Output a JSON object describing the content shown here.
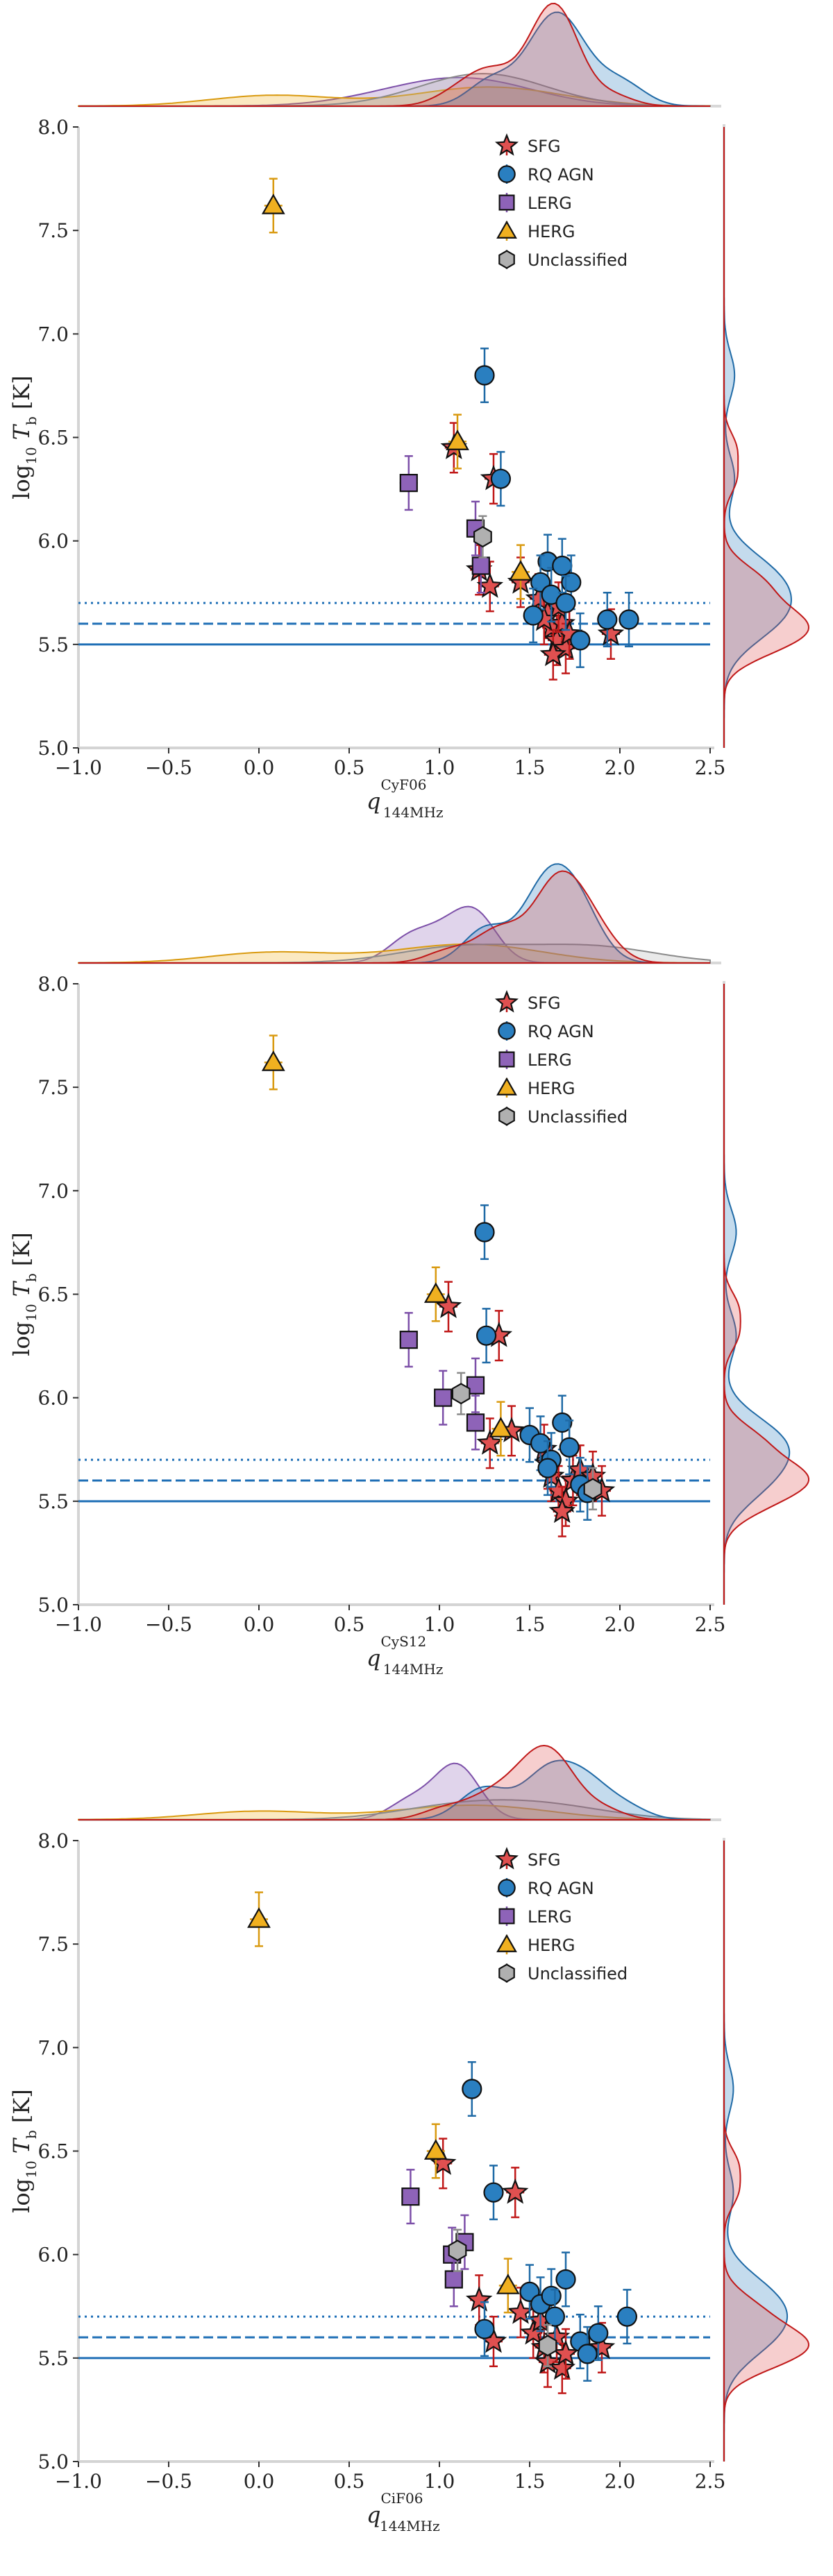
{
  "colors": {
    "SFG": "#e05050",
    "SFG_edge": "#c01818",
    "RQ AGN": "#2a7fc0",
    "RQ AGN_edge": "#1f6aa6",
    "LERG": "#8e63b8",
    "LERG_edge": "#7c4fa8",
    "HERG": "#f0b020",
    "HERG_edge": "#d99a10",
    "Unclassified": "#b0b0b0",
    "Unclassified_edge": "#8a8a8a",
    "threshold": "#1f6fb6"
  },
  "chart_data": [
    {
      "type": "scatter",
      "xlabel": "q",
      "xlabel_sup": "CyF06",
      "xlabel_sub": "144MHz",
      "ylabel": "log",
      "ylabel_sub": "10",
      "ylabel_rest": "T",
      "ylabel_rest_sub": "b",
      "ylabel_unit": "[K]",
      "xlim": [
        -1.0,
        2.5
      ],
      "ylim": [
        5.0,
        8.0
      ],
      "xticks": [
        "−1.0",
        "−0.5",
        "0.0",
        "0.5",
        "1.0",
        "1.5",
        "2.0",
        "2.5"
      ],
      "yticks": [
        "5.0",
        "5.5",
        "6.0",
        "6.5",
        "7.0",
        "7.5",
        "8.0"
      ],
      "legend": [
        "SFG",
        "RQ AGN",
        "LERG",
        "HERG",
        "Unclassified"
      ],
      "legend_position": "top-right",
      "hlines": [
        5.5,
        5.6,
        5.7
      ],
      "series": [
        {
          "name": "SFG",
          "marker": "star",
          "points": [
            {
              "x": 1.08,
              "y": 6.45,
              "e": 0.12
            },
            {
              "x": 1.3,
              "y": 6.3,
              "e": 0.12
            },
            {
              "x": 1.22,
              "y": 5.86,
              "e": 0.12
            },
            {
              "x": 1.28,
              "y": 5.78,
              "e": 0.12
            },
            {
              "x": 1.45,
              "y": 5.8,
              "e": 0.12
            },
            {
              "x": 1.55,
              "y": 5.72,
              "e": 0.12
            },
            {
              "x": 1.6,
              "y": 5.65,
              "e": 0.12
            },
            {
              "x": 1.62,
              "y": 5.58,
              "e": 0.12
            },
            {
              "x": 1.65,
              "y": 5.52,
              "e": 0.12
            },
            {
              "x": 1.68,
              "y": 5.6,
              "e": 0.12
            },
            {
              "x": 1.7,
              "y": 5.48,
              "e": 0.12
            },
            {
              "x": 1.72,
              "y": 5.55,
              "e": 0.12
            },
            {
              "x": 1.63,
              "y": 5.45,
              "e": 0.12
            },
            {
              "x": 1.66,
              "y": 5.68,
              "e": 0.12
            },
            {
              "x": 1.58,
              "y": 5.62,
              "e": 0.12
            },
            {
              "x": 1.95,
              "y": 5.55,
              "e": 0.12
            }
          ]
        },
        {
          "name": "RQ AGN",
          "marker": "circle",
          "points": [
            {
              "x": 1.25,
              "y": 6.8,
              "e": 0.13
            },
            {
              "x": 1.34,
              "y": 6.3,
              "e": 0.13
            },
            {
              "x": 1.6,
              "y": 5.9,
              "e": 0.13
            },
            {
              "x": 1.56,
              "y": 5.8,
              "e": 0.13
            },
            {
              "x": 1.62,
              "y": 5.74,
              "e": 0.13
            },
            {
              "x": 1.68,
              "y": 5.88,
              "e": 0.13
            },
            {
              "x": 1.73,
              "y": 5.8,
              "e": 0.13
            },
            {
              "x": 1.7,
              "y": 5.7,
              "e": 0.13
            },
            {
              "x": 1.52,
              "y": 5.64,
              "e": 0.13
            },
            {
              "x": 1.78,
              "y": 5.52,
              "e": 0.13
            },
            {
              "x": 1.93,
              "y": 5.62,
              "e": 0.13
            },
            {
              "x": 2.05,
              "y": 5.62,
              "e": 0.13
            }
          ]
        },
        {
          "name": "LERG",
          "marker": "square",
          "points": [
            {
              "x": 0.83,
              "y": 6.28,
              "e": 0.13
            },
            {
              "x": 1.2,
              "y": 6.06,
              "e": 0.13
            },
            {
              "x": 1.23,
              "y": 5.88,
              "e": 0.13
            }
          ]
        },
        {
          "name": "HERG",
          "marker": "triangle",
          "points": [
            {
              "x": 0.08,
              "y": 7.62,
              "e": 0.13
            },
            {
              "x": 1.1,
              "y": 6.48,
              "e": 0.13
            },
            {
              "x": 1.45,
              "y": 5.85,
              "e": 0.13
            }
          ]
        },
        {
          "name": "Unclassified",
          "marker": "hexagon",
          "points": [
            {
              "x": 1.24,
              "y": 6.02,
              "e": 0.1
            }
          ]
        }
      ]
    },
    {
      "type": "scatter",
      "xlabel": "q",
      "xlabel_sup": "CyS12",
      "xlabel_sub": "144MHz",
      "ylabel": "log",
      "ylabel_sub": "10",
      "ylabel_rest": "T",
      "ylabel_rest_sub": "b",
      "ylabel_unit": "[K]",
      "xlim": [
        -1.0,
        2.5
      ],
      "ylim": [
        5.0,
        8.0
      ],
      "xticks": [
        "−1.0",
        "−0.5",
        "0.0",
        "0.5",
        "1.0",
        "1.5",
        "2.0",
        "2.5"
      ],
      "yticks": [
        "5.0",
        "5.5",
        "6.0",
        "6.5",
        "7.0",
        "7.5",
        "8.0"
      ],
      "legend": [
        "SFG",
        "RQ AGN",
        "LERG",
        "HERG",
        "Unclassified"
      ],
      "legend_position": "top-right",
      "hlines": [
        5.5,
        5.6,
        5.7
      ],
      "series": [
        {
          "name": "SFG",
          "marker": "star",
          "points": [
            {
              "x": 1.05,
              "y": 6.44,
              "e": 0.12
            },
            {
              "x": 1.33,
              "y": 6.3,
              "e": 0.12
            },
            {
              "x": 1.28,
              "y": 5.78,
              "e": 0.12
            },
            {
              "x": 1.4,
              "y": 5.84,
              "e": 0.12
            },
            {
              "x": 1.58,
              "y": 5.75,
              "e": 0.12
            },
            {
              "x": 1.62,
              "y": 5.62,
              "e": 0.12
            },
            {
              "x": 1.66,
              "y": 5.55,
              "e": 0.12
            },
            {
              "x": 1.7,
              "y": 5.5,
              "e": 0.12
            },
            {
              "x": 1.74,
              "y": 5.6,
              "e": 0.12
            },
            {
              "x": 1.68,
              "y": 5.45,
              "e": 0.12
            },
            {
              "x": 1.78,
              "y": 5.65,
              "e": 0.12
            },
            {
              "x": 1.85,
              "y": 5.62,
              "e": 0.12
            },
            {
              "x": 1.9,
              "y": 5.55,
              "e": 0.12
            },
            {
              "x": 1.6,
              "y": 5.68,
              "e": 0.12
            }
          ]
        },
        {
          "name": "RQ AGN",
          "marker": "circle",
          "points": [
            {
              "x": 1.25,
              "y": 6.8,
              "e": 0.13
            },
            {
              "x": 1.26,
              "y": 6.3,
              "e": 0.13
            },
            {
              "x": 1.5,
              "y": 5.82,
              "e": 0.13
            },
            {
              "x": 1.56,
              "y": 5.78,
              "e": 0.13
            },
            {
              "x": 1.62,
              "y": 5.7,
              "e": 0.13
            },
            {
              "x": 1.68,
              "y": 5.88,
              "e": 0.13
            },
            {
              "x": 1.72,
              "y": 5.76,
              "e": 0.13
            },
            {
              "x": 1.6,
              "y": 5.66,
              "e": 0.13
            },
            {
              "x": 1.78,
              "y": 5.58,
              "e": 0.13
            },
            {
              "x": 1.82,
              "y": 5.54,
              "e": 0.13
            }
          ]
        },
        {
          "name": "LERG",
          "marker": "square",
          "points": [
            {
              "x": 0.83,
              "y": 6.28,
              "e": 0.13
            },
            {
              "x": 1.02,
              "y": 6.0,
              "e": 0.13
            },
            {
              "x": 1.2,
              "y": 6.06,
              "e": 0.13
            },
            {
              "x": 1.2,
              "y": 5.88,
              "e": 0.13
            }
          ]
        },
        {
          "name": "HERG",
          "marker": "triangle",
          "points": [
            {
              "x": 0.08,
              "y": 7.62,
              "e": 0.13
            },
            {
              "x": 0.98,
              "y": 6.5,
              "e": 0.13
            },
            {
              "x": 1.34,
              "y": 5.85,
              "e": 0.13
            }
          ]
        },
        {
          "name": "Unclassified",
          "marker": "hexagon",
          "points": [
            {
              "x": 1.12,
              "y": 6.02,
              "e": 0.1
            },
            {
              "x": 1.85,
              "y": 5.56,
              "e": 0.1
            }
          ]
        }
      ]
    },
    {
      "type": "scatter",
      "xlabel": "q",
      "xlabel_sup": "CiF06",
      "xlabel_sub": "144MHz",
      "ylabel": "log",
      "ylabel_sub": "10",
      "ylabel_rest": "T",
      "ylabel_rest_sub": "b",
      "ylabel_unit": "[K]",
      "xlim": [
        -1.0,
        2.5
      ],
      "ylim": [
        5.0,
        8.0
      ],
      "xticks": [
        "−1.0",
        "−0.5",
        "0.0",
        "0.5",
        "1.0",
        "1.5",
        "2.0",
        "2.5"
      ],
      "yticks": [
        "5.0",
        "5.5",
        "6.0",
        "6.5",
        "7.0",
        "7.5",
        "8.0"
      ],
      "legend": [
        "SFG",
        "RQ AGN",
        "LERG",
        "HERG",
        "Unclassified"
      ],
      "legend_position": "top-right",
      "hlines": [
        5.5,
        5.6,
        5.7
      ],
      "series": [
        {
          "name": "SFG",
          "marker": "star",
          "points": [
            {
              "x": 1.02,
              "y": 6.44,
              "e": 0.12
            },
            {
              "x": 1.42,
              "y": 6.3,
              "e": 0.12
            },
            {
              "x": 1.22,
              "y": 5.78,
              "e": 0.12
            },
            {
              "x": 1.3,
              "y": 5.58,
              "e": 0.12
            },
            {
              "x": 1.45,
              "y": 5.72,
              "e": 0.12
            },
            {
              "x": 1.52,
              "y": 5.62,
              "e": 0.12
            },
            {
              "x": 1.58,
              "y": 5.55,
              "e": 0.12
            },
            {
              "x": 1.6,
              "y": 5.48,
              "e": 0.12
            },
            {
              "x": 1.65,
              "y": 5.6,
              "e": 0.12
            },
            {
              "x": 1.68,
              "y": 5.45,
              "e": 0.12
            },
            {
              "x": 1.56,
              "y": 5.68,
              "e": 0.12
            },
            {
              "x": 1.7,
              "y": 5.52,
              "e": 0.12
            },
            {
              "x": 1.9,
              "y": 5.55,
              "e": 0.12
            }
          ]
        },
        {
          "name": "RQ AGN",
          "marker": "circle",
          "points": [
            {
              "x": 1.18,
              "y": 6.8,
              "e": 0.13
            },
            {
              "x": 1.3,
              "y": 6.3,
              "e": 0.13
            },
            {
              "x": 1.25,
              "y": 5.64,
              "e": 0.13
            },
            {
              "x": 1.5,
              "y": 5.82,
              "e": 0.13
            },
            {
              "x": 1.56,
              "y": 5.76,
              "e": 0.13
            },
            {
              "x": 1.62,
              "y": 5.8,
              "e": 0.13
            },
            {
              "x": 1.7,
              "y": 5.88,
              "e": 0.13
            },
            {
              "x": 1.64,
              "y": 5.7,
              "e": 0.13
            },
            {
              "x": 1.78,
              "y": 5.58,
              "e": 0.13
            },
            {
              "x": 1.82,
              "y": 5.52,
              "e": 0.13
            },
            {
              "x": 1.88,
              "y": 5.62,
              "e": 0.13
            },
            {
              "x": 2.04,
              "y": 5.7,
              "e": 0.13
            }
          ]
        },
        {
          "name": "LERG",
          "marker": "square",
          "points": [
            {
              "x": 0.84,
              "y": 6.28,
              "e": 0.13
            },
            {
              "x": 1.07,
              "y": 6.0,
              "e": 0.13
            },
            {
              "x": 1.14,
              "y": 6.06,
              "e": 0.13
            },
            {
              "x": 1.08,
              "y": 5.88,
              "e": 0.13
            }
          ]
        },
        {
          "name": "HERG",
          "marker": "triangle",
          "points": [
            {
              "x": 0.0,
              "y": 7.62,
              "e": 0.13
            },
            {
              "x": 0.98,
              "y": 6.5,
              "e": 0.13
            },
            {
              "x": 1.38,
              "y": 5.85,
              "e": 0.13
            }
          ]
        },
        {
          "name": "Unclassified",
          "marker": "hexagon",
          "points": [
            {
              "x": 1.1,
              "y": 6.02,
              "e": 0.1
            },
            {
              "x": 1.6,
              "y": 5.56,
              "e": 0.1
            }
          ]
        }
      ]
    }
  ]
}
